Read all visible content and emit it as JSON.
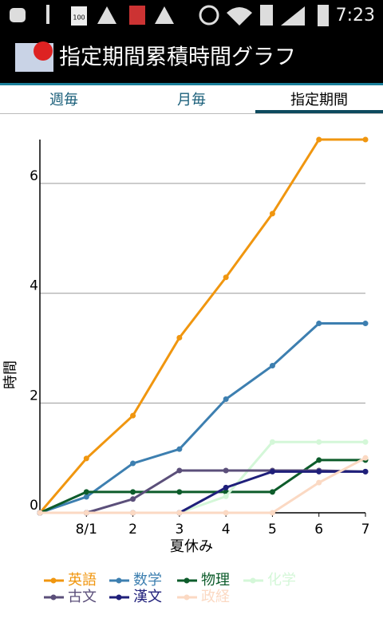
{
  "status_bar": {
    "battery_text": "100",
    "time": "7:23"
  },
  "app_bar": {
    "title": "指定期間累積時間グラフ"
  },
  "tabs": [
    "週毎",
    "月毎",
    "指定期間"
  ],
  "chart_data": {
    "type": "line",
    "x_label": "夏休み",
    "y_label": "時間",
    "categories": [
      null,
      "8/1",
      "2",
      "3",
      "4",
      "5",
      "6",
      "7"
    ],
    "ylim": [
      0,
      6.8
    ],
    "yticks": [
      0,
      2,
      4,
      6
    ],
    "grid": true,
    "series": [
      {
        "name": "英語",
        "color": "#f0960f",
        "values": [
          0,
          0.99,
          1.77,
          3.19,
          4.29,
          5.45,
          6.8,
          6.8
        ]
      },
      {
        "name": "数学",
        "color": "#3d7fb0",
        "values": [
          0,
          0.29,
          0.9,
          1.16,
          2.07,
          2.68,
          3.45,
          3.45
        ]
      },
      {
        "name": "物理",
        "color": "#0d5c2b",
        "values": [
          0,
          0.38,
          0.38,
          0.38,
          0.38,
          0.38,
          0.96,
          0.96
        ]
      },
      {
        "name": "化学",
        "color": "#d4f7d8",
        "values": [
          0,
          0,
          0,
          0,
          0.3,
          1.29,
          1.29,
          1.29
        ]
      },
      {
        "name": "古文",
        "color": "#5b4f7a",
        "values": [
          0,
          0,
          0.25,
          0.77,
          0.77,
          0.77,
          0.77,
          0.75
        ]
      },
      {
        "name": "漢文",
        "color": "#1f1f7a",
        "values": [
          0,
          0,
          0,
          0,
          0.46,
          0.75,
          0.75,
          0.75
        ]
      },
      {
        "name": "政経",
        "color": "#fbd9c3",
        "values": [
          0,
          0,
          0,
          0,
          0,
          0,
          0.55,
          1.0
        ]
      }
    ]
  }
}
